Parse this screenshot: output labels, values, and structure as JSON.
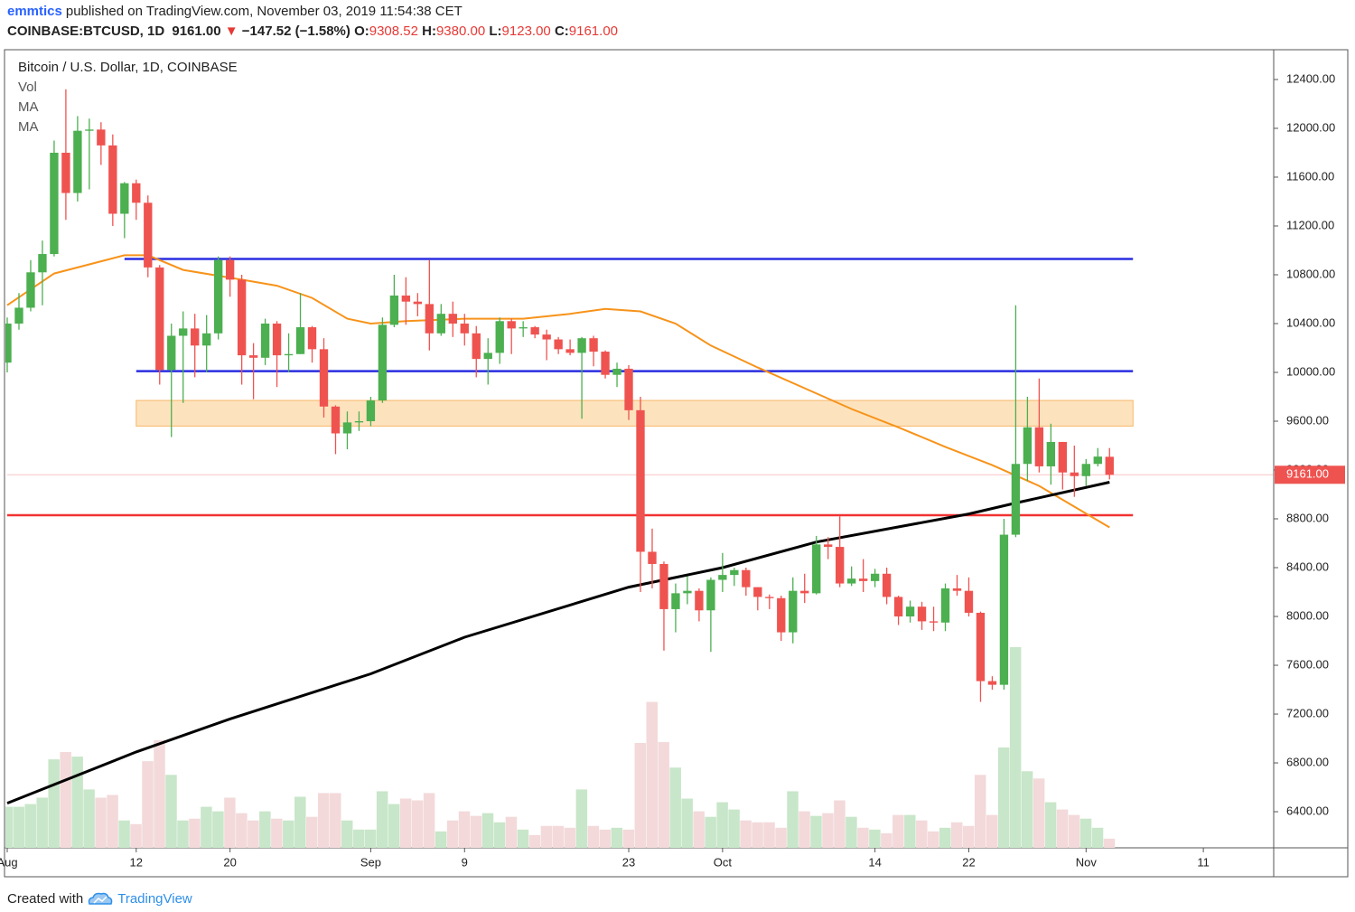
{
  "header": {
    "author": "emmtics",
    "published": "published on TradingView.com, November 03, 2019 11:54:38 CET",
    "symbol": "COINBASE:BTCUSD, 1D",
    "price": "9161.00",
    "arrow": "▼",
    "change": "−147.52 (−1.58%)",
    "o_label": "O:",
    "o": "9308.52",
    "h_label": "H:",
    "h": "9380.00",
    "l_label": "L:",
    "l": "9123.00",
    "c_label": "C:",
    "c": "9161.00"
  },
  "footer": {
    "created": "Created with",
    "brand": "TradingView"
  },
  "chart_data": {
    "type": "candlestick",
    "title": "Bitcoin / U.S. Dollar, 1D, COINBASE",
    "volume_label": "Vol",
    "up_color": "#4caf50",
    "down_color": "#ef5350",
    "volume_up_color": "#c8e6c9",
    "volume_down_color": "#f3d9da",
    "x": [
      "2019-08-01",
      "2019-08-02",
      "2019-08-03",
      "2019-08-04",
      "2019-08-05",
      "2019-08-06",
      "2019-08-07",
      "2019-08-08",
      "2019-08-09",
      "2019-08-10",
      "2019-08-11",
      "2019-08-12",
      "2019-08-13",
      "2019-08-14",
      "2019-08-15",
      "2019-08-16",
      "2019-08-17",
      "2019-08-18",
      "2019-08-19",
      "2019-08-20",
      "2019-08-21",
      "2019-08-22",
      "2019-08-23",
      "2019-08-24",
      "2019-08-25",
      "2019-08-26",
      "2019-08-27",
      "2019-08-28",
      "2019-08-29",
      "2019-08-30",
      "2019-08-31",
      "2019-09-01",
      "2019-09-02",
      "2019-09-03",
      "2019-09-04",
      "2019-09-05",
      "2019-09-06",
      "2019-09-07",
      "2019-09-08",
      "2019-09-09",
      "2019-09-10",
      "2019-09-11",
      "2019-09-12",
      "2019-09-13",
      "2019-09-14",
      "2019-09-15",
      "2019-09-16",
      "2019-09-17",
      "2019-09-18",
      "2019-09-19",
      "2019-09-20",
      "2019-09-21",
      "2019-09-22",
      "2019-09-23",
      "2019-09-24",
      "2019-09-25",
      "2019-09-26",
      "2019-09-27",
      "2019-09-28",
      "2019-09-29",
      "2019-09-30",
      "2019-10-01",
      "2019-10-02",
      "2019-10-03",
      "2019-10-04",
      "2019-10-05",
      "2019-10-06",
      "2019-10-07",
      "2019-10-08",
      "2019-10-09",
      "2019-10-10",
      "2019-10-11",
      "2019-10-12",
      "2019-10-13",
      "2019-10-14",
      "2019-10-15",
      "2019-10-16",
      "2019-10-17",
      "2019-10-18",
      "2019-10-19",
      "2019-10-20",
      "2019-10-21",
      "2019-10-22",
      "2019-10-23",
      "2019-10-24",
      "2019-10-25",
      "2019-10-26",
      "2019-10-27",
      "2019-10-28",
      "2019-10-29",
      "2019-10-30",
      "2019-10-31",
      "2019-11-01",
      "2019-11-02",
      "2019-11-03"
    ],
    "open": [
      10080,
      10400,
      10530,
      10820,
      10970,
      11800,
      11470,
      11980,
      11990,
      11860,
      11300,
      11550,
      11390,
      10860,
      10020,
      10300,
      10360,
      10220,
      10320,
      10920,
      10760,
      10140,
      10120,
      10400,
      10140,
      10150,
      10370,
      10190,
      9720,
      9500,
      9590,
      9600,
      9770,
      10390,
      10630,
      10580,
      10560,
      10320,
      10480,
      10400,
      10320,
      10110,
      10160,
      10420,
      10360,
      10370,
      10310,
      10270,
      10190,
      10160,
      10280,
      10170,
      9980,
      10030,
      9690,
      8530,
      8430,
      8060,
      8190,
      8210,
      8050,
      8300,
      8340,
      8380,
      8240,
      8160,
      8150,
      7870,
      8210,
      8190,
      8590,
      8570,
      8270,
      8310,
      8290,
      8350,
      8160,
      8000,
      8080,
      7960,
      7950,
      8230,
      8210,
      8030,
      7470,
      7440,
      8670,
      9250,
      9550,
      9230,
      9430,
      9180,
      9150,
      9250,
      9308.52
    ],
    "high": [
      10450,
      10650,
      10920,
      11080,
      11900,
      12320,
      12100,
      12080,
      12050,
      11950,
      11560,
      11580,
      11450,
      10880,
      10400,
      10500,
      10480,
      10470,
      10950,
      10950,
      10800,
      10240,
      10440,
      10420,
      10320,
      10650,
      10380,
      10280,
      9730,
      9680,
      9680,
      9800,
      10450,
      10800,
      10780,
      10650,
      10920,
      10560,
      10580,
      10480,
      10380,
      10280,
      10450,
      10440,
      10420,
      10380,
      10350,
      10290,
      10270,
      10290,
      10300,
      10180,
      10080,
      10060,
      9800,
      8720,
      8450,
      8270,
      8330,
      8230,
      8320,
      8520,
      8400,
      8400,
      8240,
      8180,
      8170,
      8320,
      8350,
      8660,
      8650,
      8820,
      8410,
      8470,
      8390,
      8400,
      8170,
      8130,
      8120,
      8080,
      8270,
      8340,
      8320,
      8040,
      7510,
      8800,
      10550,
      9800,
      9950,
      9580,
      9430,
      9400,
      9290,
      9380,
      9380
    ],
    "low": [
      10000,
      10350,
      10500,
      10550,
      10950,
      11250,
      11400,
      11500,
      11700,
      11200,
      11100,
      11250,
      10780,
      9900,
      9470,
      9750,
      9960,
      10000,
      10270,
      10620,
      9900,
      9780,
      10060,
      9880,
      10000,
      10150,
      10080,
      9630,
      9330,
      9370,
      9520,
      9560,
      9750,
      10370,
      10390,
      10460,
      10180,
      10300,
      10290,
      10220,
      9960,
      9900,
      10070,
      10150,
      10290,
      10280,
      10100,
      10150,
      10140,
      9620,
      10050,
      9950,
      9880,
      9610,
      8200,
      8230,
      7720,
      7870,
      8100,
      7960,
      7710,
      8200,
      8250,
      8170,
      8050,
      8060,
      7800,
      7780,
      8110,
      8180,
      8470,
      8240,
      8250,
      8200,
      8240,
      8100,
      7930,
      7950,
      7890,
      7880,
      7880,
      8170,
      8000,
      7300,
      7400,
      7400,
      8650,
      9110,
      9180,
      9080,
      9040,
      8980,
      9070,
      9230,
      9123
    ],
    "close": [
      10400,
      10530,
      10820,
      10970,
      11800,
      11470,
      11980,
      11990,
      11860,
      11300,
      11550,
      11390,
      10860,
      10020,
      10300,
      10360,
      10220,
      10320,
      10920,
      10760,
      10140,
      10120,
      10400,
      10140,
      10150,
      10370,
      10190,
      9720,
      9500,
      9590,
      9600,
      9770,
      10390,
      10630,
      10580,
      10560,
      10320,
      10480,
      10400,
      10320,
      10110,
      10160,
      10420,
      10360,
      10370,
      10310,
      10270,
      10190,
      10160,
      10280,
      10170,
      9980,
      10030,
      9690,
      8530,
      8430,
      8060,
      8190,
      8210,
      8050,
      8300,
      8340,
      8380,
      8240,
      8160,
      8150,
      7870,
      8210,
      8190,
      8590,
      8570,
      8270,
      8310,
      8290,
      8350,
      8160,
      8000,
      8080,
      7960,
      7950,
      8230,
      8210,
      8030,
      7470,
      7440,
      8670,
      9250,
      9550,
      9230,
      9430,
      9180,
      9150,
      9250,
      9310,
      9161
    ],
    "volume": [
      45,
      45,
      48,
      55,
      97,
      105,
      100,
      64,
      55,
      58,
      30,
      26,
      95,
      118,
      80,
      30,
      32,
      45,
      40,
      55,
      38,
      30,
      40,
      32,
      30,
      56,
      34,
      60,
      60,
      30,
      20,
      20,
      62,
      48,
      54,
      52,
      60,
      18,
      30,
      40,
      35,
      38,
      28,
      34,
      20,
      14,
      24,
      24,
      22,
      64,
      24,
      20,
      22,
      20,
      115,
      160,
      116,
      88,
      54,
      40,
      34,
      50,
      42,
      30,
      28,
      28,
      22,
      62,
      40,
      35,
      38,
      52,
      34,
      22,
      20,
      16,
      36,
      36,
      30,
      18,
      22,
      28,
      24,
      80,
      36,
      110,
      220,
      84,
      76,
      50,
      42,
      36,
      32,
      22,
      10
    ],
    "ma": [
      {
        "name": "MA",
        "color": "#f7931a",
        "x": [
          "2019-08-01",
          "2019-08-05",
          "2019-08-11",
          "2019-08-13",
          "2019-08-16",
          "2019-08-21",
          "2019-08-24",
          "2019-08-27",
          "2019-08-30",
          "2019-09-01",
          "2019-09-04",
          "2019-09-09",
          "2019-09-14",
          "2019-09-18",
          "2019-09-21",
          "2019-09-24",
          "2019-09-27",
          "2019-09-30",
          "2019-10-04",
          "2019-10-08",
          "2019-10-12",
          "2019-10-16",
          "2019-10-20",
          "2019-10-24",
          "2019-10-28",
          "2019-11-03"
        ],
        "values": [
          10550,
          10810,
          10960,
          10960,
          10840,
          10760,
          10710,
          10610,
          10440,
          10400,
          10420,
          10440,
          10440,
          10480,
          10520,
          10500,
          10400,
          10220,
          10040,
          9870,
          9700,
          9550,
          9390,
          9240,
          9070,
          8730
        ]
      },
      {
        "name": "MA",
        "color": "#000000",
        "x": [
          "2019-08-01",
          "2019-08-12",
          "2019-08-20",
          "2019-09-01",
          "2019-09-09",
          "2019-09-23",
          "2019-10-01",
          "2019-10-09",
          "2019-10-22",
          "2019-10-26",
          "2019-11-03"
        ],
        "values": [
          6470,
          6890,
          7160,
          7530,
          7830,
          8240,
          8400,
          8610,
          8840,
          8930,
          9100
        ]
      }
    ],
    "levels": [
      {
        "value": 10930,
        "color": "#2a2ee0",
        "from": "2019-08-11",
        "to": "2019-11-05"
      },
      {
        "value": 10010,
        "color": "#2a2ee0",
        "from": "2019-08-12",
        "to": "2019-11-05"
      },
      {
        "value": 8830,
        "color": "#f23232",
        "from": "2019-08-01",
        "to": "2019-11-05"
      }
    ],
    "zone": {
      "low": 9560,
      "high": 9770,
      "color": "#fde3bd",
      "border": "#f7b768",
      "from": "2019-08-12",
      "to": "2019-11-05"
    },
    "last_price": {
      "value": 9161,
      "label": "9161.00"
    },
    "last_color": "#ef5350",
    "ylim": [
      6104,
      12622
    ],
    "yticks": [
      {
        "value": 6400,
        "label": "6400.00"
      },
      {
        "value": 6800,
        "label": "6800.00"
      },
      {
        "value": 7200,
        "label": "7200.00"
      },
      {
        "value": 7600,
        "label": "7600.00"
      },
      {
        "value": 8000,
        "label": "8000.00"
      },
      {
        "value": 8400,
        "label": "8400.00"
      },
      {
        "value": 8800,
        "label": "8800.00"
      },
      {
        "value": 9200,
        "label": "9200.00"
      },
      {
        "value": 9600,
        "label": "9600.00"
      },
      {
        "value": 10000,
        "label": "10000.00"
      },
      {
        "value": 10400,
        "label": "10400.00"
      },
      {
        "value": 10800,
        "label": "10800.00"
      },
      {
        "value": 11200,
        "label": "11200.00"
      },
      {
        "value": 11600,
        "label": "11600.00"
      },
      {
        "value": 12000,
        "label": "12000.00"
      },
      {
        "value": 12400,
        "label": "12400.00"
      }
    ],
    "xlim": [
      "2019-08-01",
      "2019-11-17"
    ],
    "xticks": [
      {
        "value": "2019-08-01",
        "label": "Aug"
      },
      {
        "value": "2019-08-12",
        "label": "12"
      },
      {
        "value": "2019-08-20",
        "label": "20"
      },
      {
        "value": "2019-09-01",
        "label": "Sep"
      },
      {
        "value": "2019-09-09",
        "label": "9"
      },
      {
        "value": "2019-09-23",
        "label": "23"
      },
      {
        "value": "2019-10-01",
        "label": "Oct"
      },
      {
        "value": "2019-10-14",
        "label": "14"
      },
      {
        "value": "2019-10-22",
        "label": "22"
      },
      {
        "value": "2019-11-01",
        "label": "Nov"
      },
      {
        "value": "2019-11-11",
        "label": "11"
      }
    ]
  }
}
